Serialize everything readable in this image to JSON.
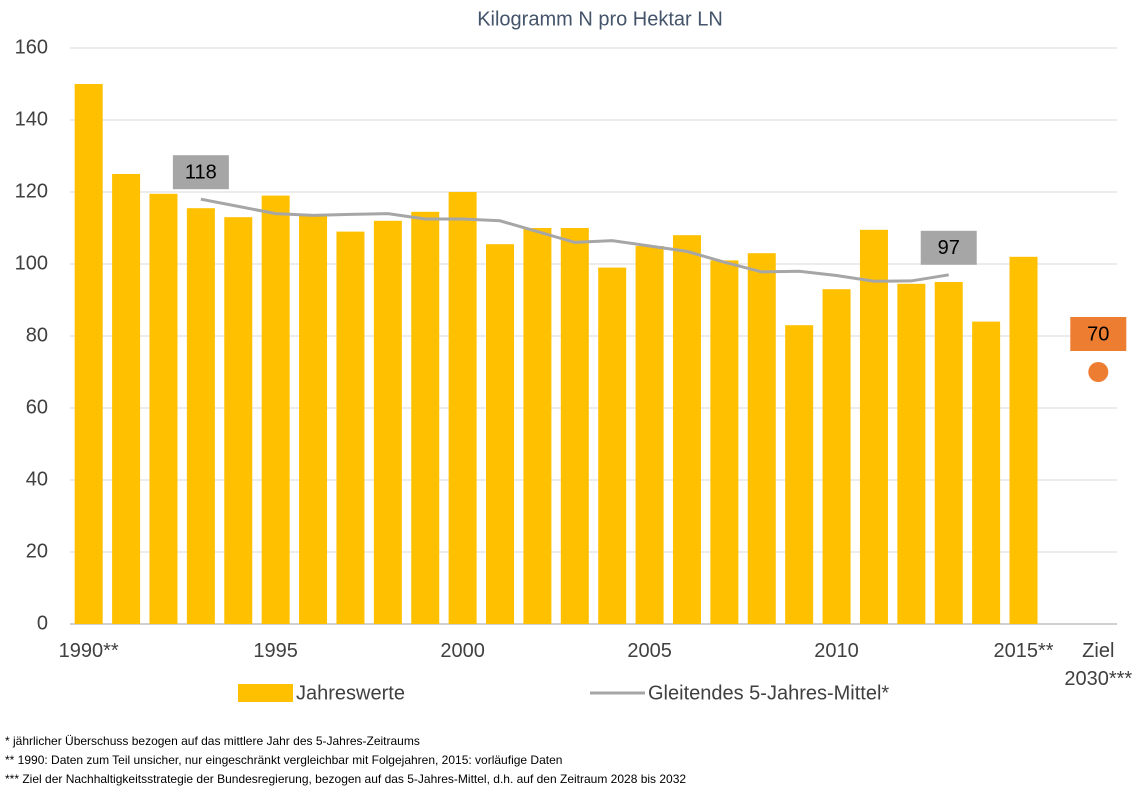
{
  "chart_data": {
    "type": "bar",
    "title": "Kilogramm N pro Hektar LN",
    "categories": [
      "1990**",
      null,
      null,
      null,
      null,
      "1995",
      null,
      null,
      null,
      null,
      "2000",
      null,
      null,
      null,
      null,
      "2005",
      null,
      null,
      null,
      null,
      "2010",
      null,
      null,
      null,
      null,
      "2015**",
      null,
      "Ziel\n2030***"
    ],
    "series": [
      {
        "name": "Jahreswerte",
        "type": "bar",
        "color": "#FFC000",
        "values": [
          150,
          125,
          119.5,
          115.5,
          113,
          119,
          113.5,
          109,
          112,
          114.5,
          120,
          105.5,
          110,
          110,
          99,
          105,
          108,
          101,
          103,
          83,
          93,
          109.5,
          94.5,
          95,
          84,
          102,
          null,
          null
        ]
      },
      {
        "name": "Gleitendes 5-Jahres-Mittel*",
        "type": "line",
        "color": "#A6A6A6",
        "values": [
          null,
          null,
          null,
          118,
          116,
          114,
          113.5,
          113.8,
          114,
          112.5,
          112.5,
          112,
          109,
          106,
          106.5,
          105,
          103.5,
          100.5,
          97.8,
          98,
          96.8,
          95.2,
          95.3,
          97,
          null,
          null,
          null,
          null
        ],
        "value_labels": [
          null,
          null,
          null,
          "118",
          null,
          null,
          null,
          null,
          null,
          null,
          null,
          null,
          null,
          null,
          null,
          null,
          null,
          null,
          null,
          null,
          null,
          null,
          null,
          "97",
          null,
          null,
          null,
          null
        ]
      },
      {
        "type": "scatter",
        "color": "#ED7D31",
        "values": [
          null,
          null,
          null,
          null,
          null,
          null,
          null,
          null,
          null,
          null,
          null,
          null,
          null,
          null,
          null,
          null,
          null,
          null,
          null,
          null,
          null,
          null,
          null,
          null,
          null,
          null,
          null,
          70
        ],
        "value_labels": [
          null,
          null,
          null,
          null,
          null,
          null,
          null,
          null,
          null,
          null,
          null,
          null,
          null,
          null,
          null,
          null,
          null,
          null,
          null,
          null,
          null,
          null,
          null,
          null,
          null,
          null,
          null,
          "70"
        ]
      }
    ],
    "ylim": [
      0,
      160
    ],
    "yticks": [
      0,
      20,
      40,
      60,
      80,
      100,
      120,
      140,
      160
    ],
    "grid": true,
    "footnotes": [
      "* jährlicher Überschuss bezogen auf das mittlere Jahr des 5-Jahres-Zeitraums",
      "** 1990: Daten zum Teil unsicher, nur eingeschränkt vergleichbar mit Folgejahren, 2015: vorläufige Daten",
      "*** Ziel der Nachhaltigkeitsstrategie der Bundesregierung, bezogen auf das 5-Jahres-Mittel, d.h. auf den Zeitraum 2028 bis 2032"
    ]
  }
}
